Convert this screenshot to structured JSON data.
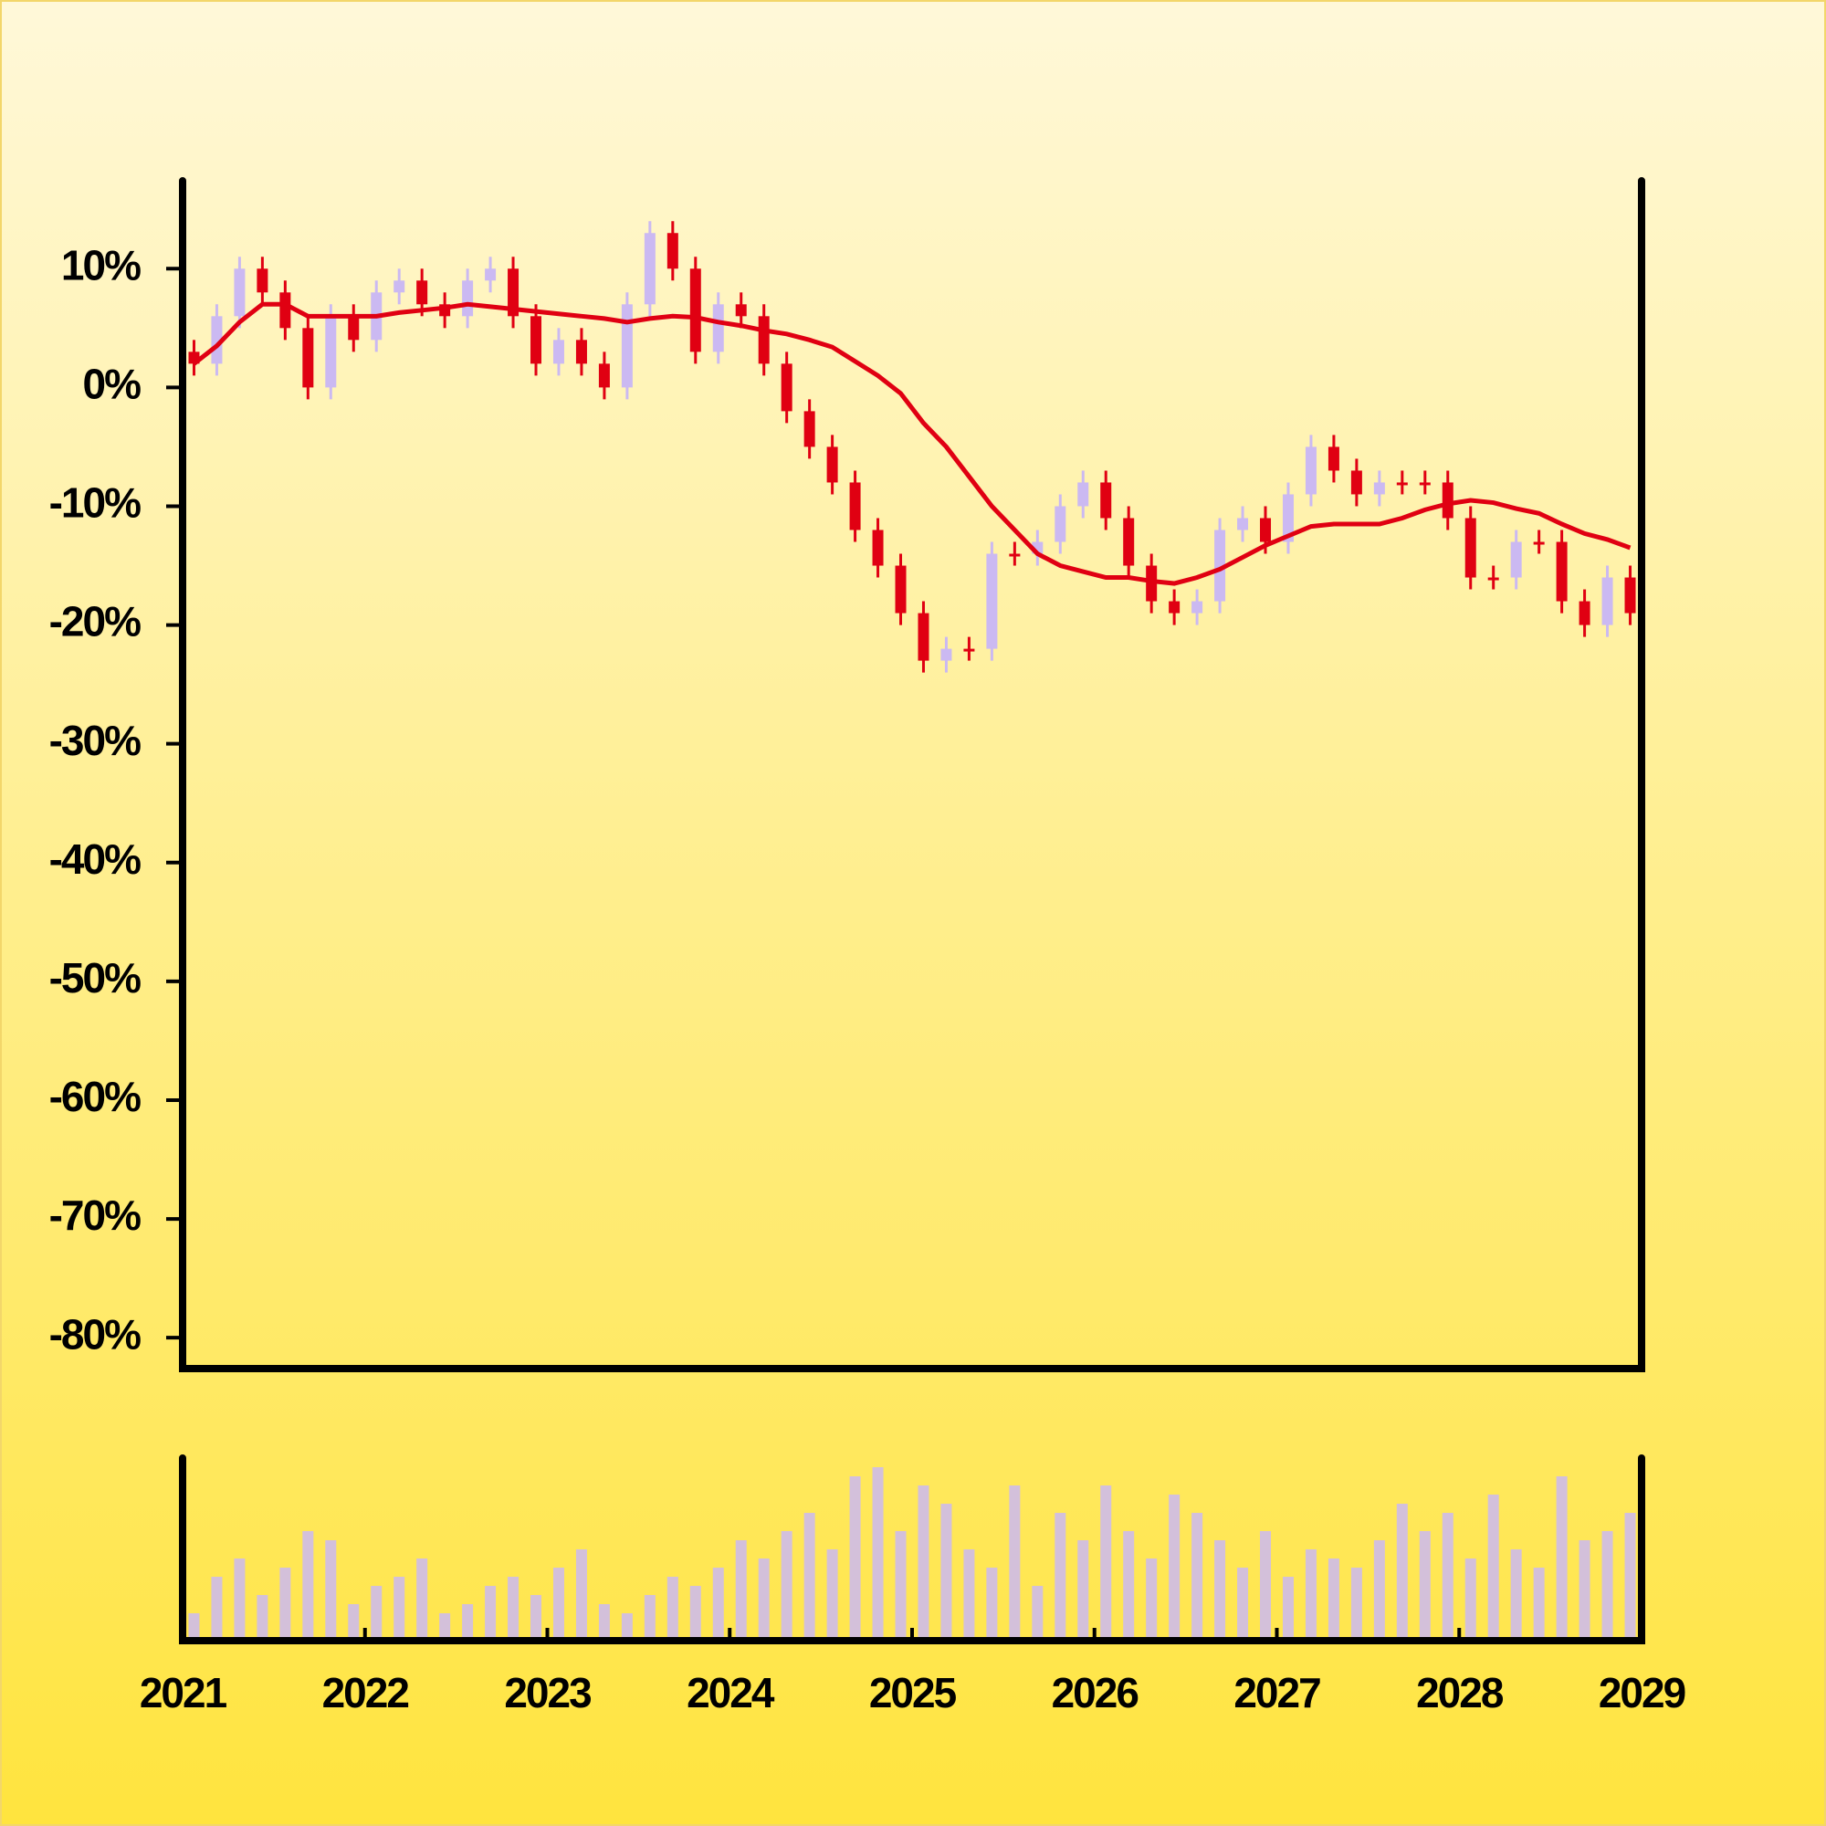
{
  "chart_data": {
    "type": "candlestick",
    "x": [
      2021,
      2021.125,
      2021.25,
      2021.375,
      2021.5,
      2021.625,
      2021.75,
      2021.875,
      2022,
      2022.125,
      2022.25,
      2022.375,
      2022.5,
      2022.625,
      2022.75,
      2022.875,
      2023,
      2023.125,
      2023.25,
      2023.375,
      2023.5,
      2023.625,
      2023.75,
      2023.875,
      2024,
      2024.125,
      2024.25,
      2024.375,
      2024.5,
      2024.625,
      2024.75,
      2024.875,
      2025,
      2025.125,
      2025.25,
      2025.375,
      2025.5,
      2025.625,
      2025.75,
      2025.875,
      2026,
      2026.125,
      2026.25,
      2026.375,
      2026.5,
      2026.625,
      2026.75,
      2026.875,
      2027,
      2027.125,
      2027.25,
      2027.375,
      2027.5,
      2027.625,
      2027.75,
      2027.875,
      2028,
      2028.125,
      2028.25,
      2028.375,
      2028.5,
      2028.625,
      2028.75,
      2028.875
    ],
    "open": [
      3,
      2,
      6,
      10,
      8,
      5,
      0,
      6,
      4,
      8,
      9,
      7,
      6,
      9,
      10,
      6,
      2,
      4,
      2,
      0,
      7,
      13,
      10,
      3,
      7,
      6,
      2,
      -2,
      -5,
      -8,
      -12,
      -15,
      -19,
      -23,
      -22,
      -22,
      -14,
      -14,
      -13,
      -10,
      -8,
      -11,
      -15,
      -18,
      -19,
      -18,
      -12,
      -11,
      -13,
      -9,
      -5,
      -7,
      -9,
      -8,
      -8,
      -8,
      -11,
      -16,
      -16,
      -13,
      -13,
      -18,
      -20,
      -16
    ],
    "high": [
      4,
      7,
      11,
      11,
      9,
      6,
      7,
      7,
      9,
      10,
      10,
      8,
      10,
      11,
      11,
      7,
      5,
      5,
      3,
      8,
      14,
      14,
      11,
      8,
      8,
      7,
      3,
      -1,
      -4,
      -7,
      -11,
      -14,
      -18,
      -21,
      -21,
      -13,
      -13,
      -12,
      -9,
      -7,
      -7,
      -10,
      -14,
      -17,
      -17,
      -11,
      -10,
      -10,
      -8,
      -4,
      -4,
      -6,
      -7,
      -7,
      -7,
      -7,
      -10,
      -15,
      -12,
      -12,
      -12,
      -17,
      -15,
      -15
    ],
    "low": [
      1,
      1,
      5,
      7,
      4,
      -1,
      -1,
      3,
      3,
      7,
      6,
      5,
      5,
      8,
      5,
      1,
      1,
      1,
      -1,
      -1,
      6,
      9,
      2,
      2,
      5,
      1,
      -3,
      -6,
      -9,
      -13,
      -16,
      -20,
      -24,
      -24,
      -23,
      -23,
      -15,
      -15,
      -14,
      -11,
      -12,
      -16,
      -19,
      -20,
      -20,
      -19,
      -13,
      -14,
      -14,
      -10,
      -8,
      -10,
      -10,
      -9,
      -9,
      -12,
      -17,
      -17,
      -17,
      -14,
      -19,
      -21,
      -21,
      -20
    ],
    "close": [
      2,
      6,
      10,
      8,
      5,
      0,
      6,
      4,
      8,
      9,
      7,
      6,
      9,
      10,
      6,
      2,
      4,
      2,
      0,
      7,
      13,
      10,
      3,
      7,
      6,
      2,
      -2,
      -5,
      -8,
      -12,
      -15,
      -19,
      -23,
      -22,
      -22,
      -14,
      -14,
      -13,
      -10,
      -8,
      -11,
      -15,
      -18,
      -19,
      -18,
      -12,
      -11,
      -13,
      -9,
      -5,
      -7,
      -9,
      -8,
      -8,
      -8,
      -11,
      -16,
      -16,
      -13,
      -13,
      -18,
      -20,
      -16,
      -19
    ],
    "up_color": "#cbb9f2",
    "down_color": "#e00012",
    "moving_average": {
      "color": "#e00012",
      "values": [
        2,
        3.5,
        5.5,
        7,
        7,
        6,
        6,
        6,
        6,
        6.3,
        6.5,
        6.7,
        7,
        6.8,
        6.6,
        6.4,
        6.2,
        6,
        5.8,
        5.5,
        5.8,
        6,
        5.9,
        5.5,
        5.2,
        4.8,
        4.5,
        4,
        3.4,
        2.2,
        1,
        -0.5,
        -3,
        -5,
        -7.5,
        -10,
        -12,
        -14,
        -15,
        -15.5,
        -16,
        -16,
        -16.3,
        -16.5,
        -16,
        -15.3,
        -14.3,
        -13.3,
        -12.5,
        -11.7,
        -11.5,
        -11.5,
        -11.5,
        -11,
        -10.3,
        -9.8,
        -9.5,
        -9.7,
        -10.2,
        -10.6,
        -11.5,
        -12.3,
        -12.8,
        -13.5
      ]
    },
    "volume": {
      "color": "#cbb9f2",
      "ylim": [
        0,
        100
      ],
      "values": [
        15,
        35,
        45,
        25,
        40,
        60,
        55,
        20,
        30,
        35,
        45,
        15,
        20,
        30,
        35,
        25,
        40,
        50,
        20,
        15,
        25,
        35,
        30,
        40,
        55,
        45,
        60,
        70,
        50,
        90,
        95,
        60,
        85,
        75,
        50,
        40,
        85,
        30,
        70,
        55,
        85,
        60,
        45,
        80,
        70,
        55,
        40,
        60,
        35,
        50,
        45,
        40,
        55,
        75,
        60,
        70,
        45,
        80,
        50,
        40,
        90,
        55,
        60,
        70
      ]
    },
    "xlim": [
      2021,
      2029
    ],
    "xticks": [
      2021,
      2022,
      2023,
      2024,
      2025,
      2026,
      2027,
      2028,
      2029
    ],
    "ylim": [
      -82.6,
      17.4
    ],
    "yticks": [
      {
        "value": -80,
        "label": "-80%"
      },
      {
        "value": -70,
        "label": "-70%"
      },
      {
        "value": -60,
        "label": "-60%"
      },
      {
        "value": -50,
        "label": "-50%"
      },
      {
        "value": -40,
        "label": "-40%"
      },
      {
        "value": -30,
        "label": "-30%"
      },
      {
        "value": -20,
        "label": "-20%"
      },
      {
        "value": -10,
        "label": "-10%"
      },
      {
        "value": 0,
        "label": "0%"
      },
      {
        "value": 10,
        "label": "10%"
      }
    ]
  }
}
